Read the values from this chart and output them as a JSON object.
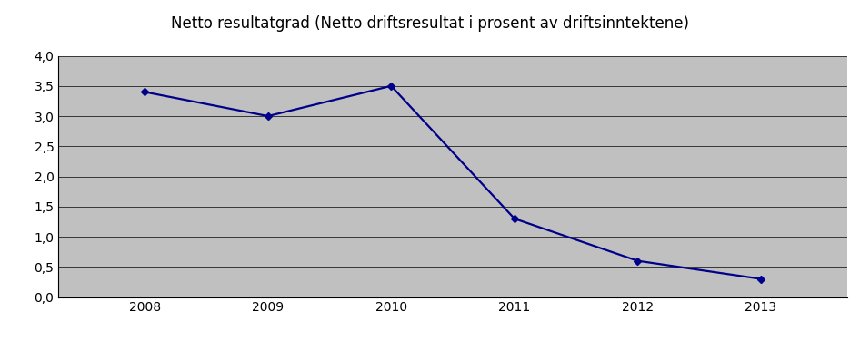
{
  "title": "Netto resultatgrad (Netto driftsresultat i prosent av driftsinntektene)",
  "years": [
    2008,
    2009,
    2010,
    2011,
    2012,
    2013
  ],
  "values": [
    3.4,
    3.0,
    3.5,
    1.3,
    0.6,
    0.3
  ],
  "line_color": "#00008B",
  "marker": "D",
  "marker_size": 4,
  "line_width": 1.6,
  "ylim": [
    0.0,
    4.0
  ],
  "yticks": [
    0.0,
    0.5,
    1.0,
    1.5,
    2.0,
    2.5,
    3.0,
    3.5,
    4.0
  ],
  "ytick_labels": [
    "0,0",
    "0,5",
    "1,0",
    "1,5",
    "2,0",
    "2,5",
    "3,0",
    "3,5",
    "4,0"
  ],
  "plot_bg_color": "#C0C0C0",
  "fig_bg_color": "#FFFFFF",
  "title_fontsize": 12,
  "tick_fontsize": 10,
  "grid_color": "#000000",
  "grid_linewidth": 0.5,
  "xlim_left": 2007.3,
  "xlim_right": 2013.7
}
